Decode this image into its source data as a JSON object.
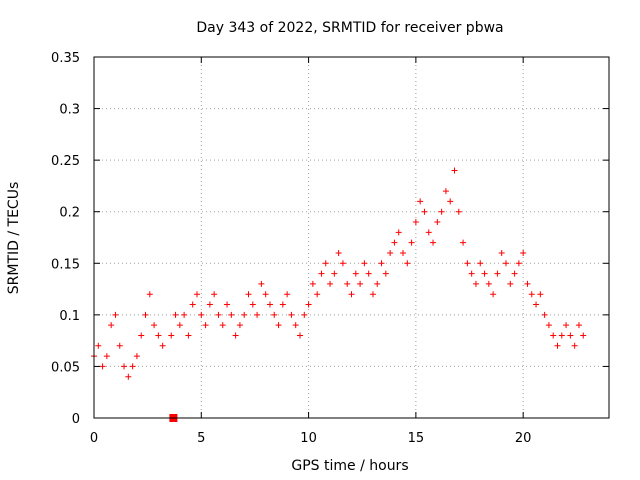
{
  "chart_data": {
    "type": "scatter",
    "title": "Day 343 of 2022, SRMTID for receiver pbwa",
    "xlabel": "GPS time / hours",
    "ylabel": "SRMTID / TECUs",
    "xlim": [
      0,
      24
    ],
    "ylim": [
      0,
      0.35
    ],
    "x_ticks": [
      "0",
      "5",
      "10",
      "15",
      "20"
    ],
    "y_ticks": [
      "0",
      "0.05",
      "0.1",
      "0.15",
      "0.2",
      "0.25",
      "0.3",
      "0.35"
    ],
    "grid": true,
    "marker": "plus",
    "color": "#ff0000",
    "series": [
      {
        "name": "SRMTID",
        "x": [
          0.0,
          0.2,
          0.4,
          0.6,
          0.8,
          1.0,
          1.2,
          1.4,
          1.6,
          1.8,
          2.0,
          2.2,
          2.4,
          2.6,
          2.8,
          3.0,
          3.2,
          3.6,
          3.8,
          4.0,
          4.2,
          4.4,
          4.6,
          4.8,
          5.0,
          5.2,
          5.4,
          5.6,
          5.8,
          6.0,
          6.2,
          6.4,
          6.6,
          6.8,
          7.0,
          7.2,
          7.4,
          7.6,
          7.8,
          8.0,
          8.2,
          8.4,
          8.6,
          8.8,
          9.0,
          9.2,
          9.4,
          9.6,
          9.8,
          10.0,
          10.2,
          10.4,
          10.6,
          10.8,
          11.0,
          11.2,
          11.4,
          11.6,
          11.8,
          12.0,
          12.2,
          12.4,
          12.6,
          12.8,
          13.0,
          13.2,
          13.4,
          13.6,
          13.8,
          14.0,
          14.2,
          14.4,
          14.6,
          14.8,
          15.0,
          15.2,
          15.4,
          15.6,
          15.8,
          16.0,
          16.2,
          16.4,
          16.6,
          16.8,
          17.0,
          17.2,
          17.4,
          17.6,
          17.8,
          18.0,
          18.2,
          18.4,
          18.6,
          18.8,
          19.0,
          19.2,
          19.4,
          19.6,
          19.8,
          20.0,
          20.2,
          20.4,
          20.6,
          20.8,
          21.0,
          21.2,
          21.4,
          21.6,
          21.8,
          22.0,
          22.2,
          22.4,
          22.6,
          22.8
        ],
        "y": [
          0.06,
          0.07,
          0.05,
          0.06,
          0.09,
          0.1,
          0.07,
          0.05,
          0.04,
          0.05,
          0.06,
          0.08,
          0.1,
          0.12,
          0.09,
          0.08,
          0.07,
          0.08,
          0.1,
          0.09,
          0.1,
          0.08,
          0.11,
          0.12,
          0.1,
          0.09,
          0.11,
          0.12,
          0.1,
          0.09,
          0.11,
          0.1,
          0.08,
          0.09,
          0.1,
          0.12,
          0.11,
          0.1,
          0.13,
          0.12,
          0.11,
          0.1,
          0.09,
          0.11,
          0.12,
          0.1,
          0.09,
          0.08,
          0.1,
          0.11,
          0.13,
          0.12,
          0.14,
          0.15,
          0.13,
          0.14,
          0.16,
          0.15,
          0.13,
          0.12,
          0.14,
          0.13,
          0.15,
          0.14,
          0.12,
          0.13,
          0.15,
          0.14,
          0.16,
          0.17,
          0.18,
          0.16,
          0.15,
          0.17,
          0.19,
          0.21,
          0.2,
          0.18,
          0.17,
          0.19,
          0.2,
          0.22,
          0.21,
          0.24,
          0.2,
          0.17,
          0.15,
          0.14,
          0.13,
          0.15,
          0.14,
          0.13,
          0.12,
          0.14,
          0.16,
          0.15,
          0.13,
          0.14,
          0.15,
          0.16,
          0.13,
          0.12,
          0.11,
          0.12,
          0.1,
          0.09,
          0.08,
          0.07,
          0.08,
          0.09,
          0.08,
          0.07,
          0.09,
          0.08
        ]
      }
    ],
    "extra_points": [
      {
        "x": 3.7,
        "y": 0.0,
        "marker": "square"
      }
    ]
  }
}
